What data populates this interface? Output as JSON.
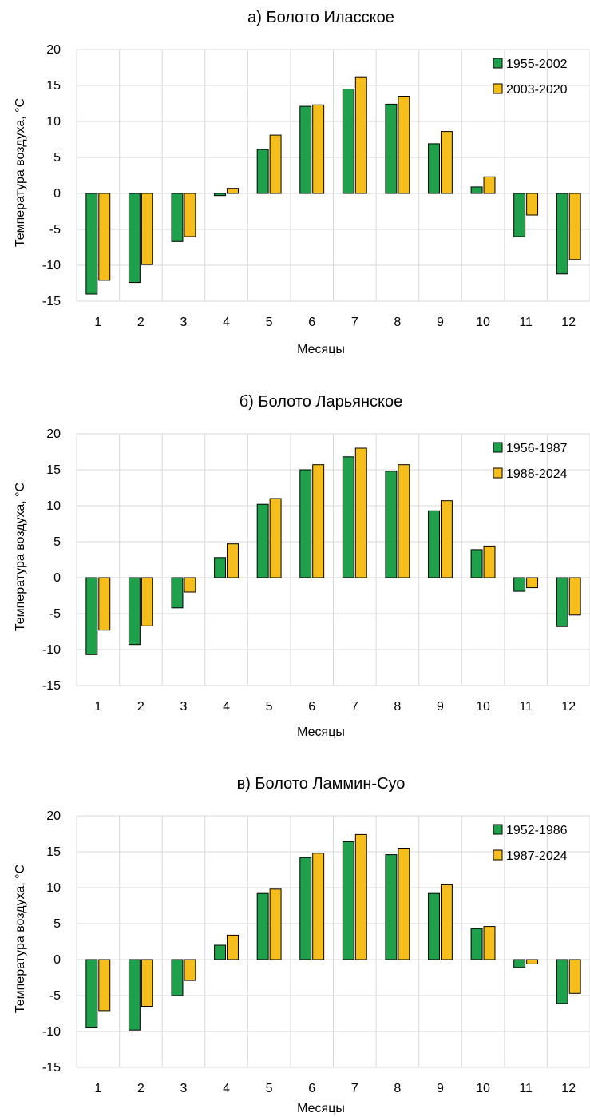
{
  "colors": {
    "series1": "#1FA04A",
    "series2": "#F6BE1A",
    "stroke": "#000000",
    "grid": "#D9D9D9"
  },
  "chart_data": [
    {
      "type": "bar",
      "title": "а) Болото Иласское",
      "xlabel": "Месяцы",
      "ylabel": "Температура воздуха, °C",
      "ylim": [
        -15,
        20
      ],
      "yticks": [
        -15,
        -10,
        -5,
        0,
        5,
        10,
        15,
        20
      ],
      "grid": true,
      "legend_position": "top-right",
      "categories": [
        "1",
        "2",
        "3",
        "4",
        "5",
        "6",
        "7",
        "8",
        "9",
        "10",
        "11",
        "12"
      ],
      "series": [
        {
          "name": "1955-2002",
          "values": [
            -14.0,
            -12.4,
            -6.7,
            -0.3,
            6.1,
            12.1,
            14.5,
            12.4,
            6.9,
            0.9,
            -6.0,
            -11.2
          ]
        },
        {
          "name": "2003-2020",
          "values": [
            -12.1,
            -9.9,
            -6.0,
            0.7,
            8.1,
            12.3,
            16.2,
            13.5,
            8.6,
            2.3,
            -3.0,
            -9.2
          ]
        }
      ]
    },
    {
      "type": "bar",
      "title": "б) Болото Ларьянское",
      "xlabel": "Месяцы",
      "ylabel": "Температура воздуха, °C",
      "ylim": [
        -15,
        20
      ],
      "yticks": [
        -15,
        -10,
        -5,
        0,
        5,
        10,
        15,
        20
      ],
      "grid": true,
      "legend_position": "top-right",
      "categories": [
        "1",
        "2",
        "3",
        "4",
        "5",
        "6",
        "7",
        "8",
        "9",
        "10",
        "11",
        "12"
      ],
      "series": [
        {
          "name": "1956-1987",
          "values": [
            -10.7,
            -9.3,
            -4.2,
            2.8,
            10.2,
            15.0,
            16.8,
            14.8,
            9.3,
            3.9,
            -1.9,
            -6.8
          ]
        },
        {
          "name": "1988-2024",
          "values": [
            -7.3,
            -6.7,
            -2.0,
            4.7,
            11.0,
            15.7,
            18.0,
            15.7,
            10.7,
            4.4,
            -1.4,
            -5.2
          ]
        }
      ]
    },
    {
      "type": "bar",
      "title": "в) Болото Ламмин-Суо",
      "xlabel": "Месяцы",
      "ylabel": "Температура воздуха, °C",
      "ylim": [
        -15,
        20
      ],
      "yticks": [
        -15,
        -10,
        -5,
        0,
        5,
        10,
        15,
        20
      ],
      "grid": true,
      "legend_position": "top-right",
      "categories": [
        "1",
        "2",
        "3",
        "4",
        "5",
        "6",
        "7",
        "8",
        "9",
        "10",
        "11",
        "12"
      ],
      "series": [
        {
          "name": "1952-1986",
          "values": [
            -9.4,
            -9.8,
            -5.0,
            2.0,
            9.2,
            14.2,
            16.4,
            14.6,
            9.2,
            4.3,
            -1.1,
            -6.1
          ]
        },
        {
          "name": "1987-2024",
          "values": [
            -7.1,
            -6.5,
            -2.9,
            3.4,
            9.8,
            14.8,
            17.4,
            15.5,
            10.4,
            4.6,
            -0.6,
            -4.7
          ]
        }
      ]
    }
  ]
}
